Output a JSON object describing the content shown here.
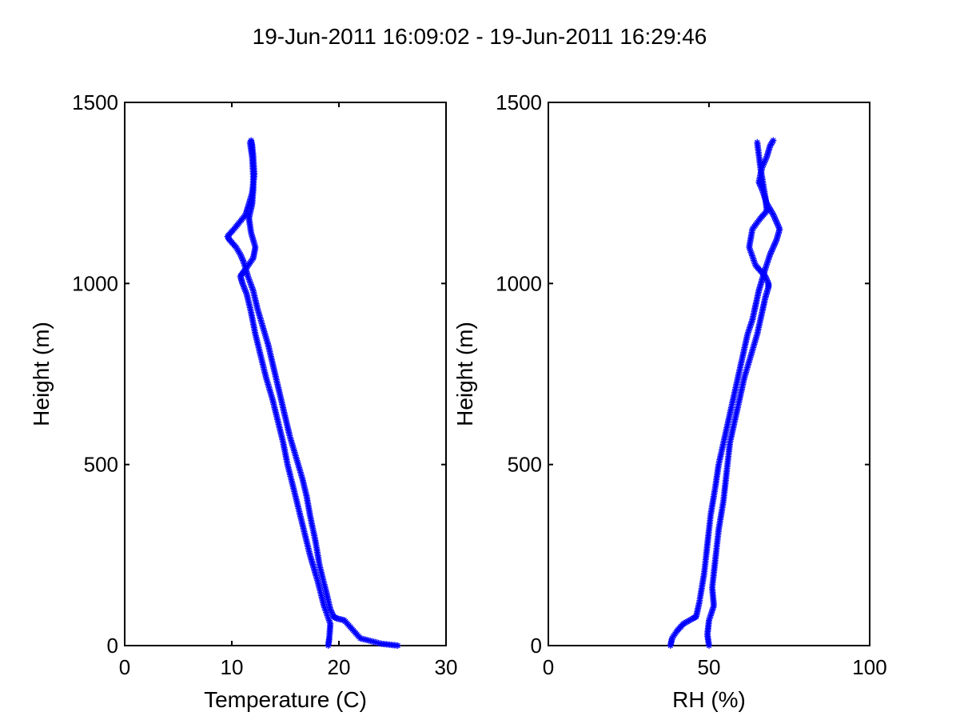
{
  "figure": {
    "title": "19-Jun-2011 16:09:02 - 19-Jun-2011 16:29:46"
  },
  "chart_data": [
    {
      "type": "line",
      "marker": "asterisk",
      "color": "#0000ff",
      "xlabel": "Temperature (C)",
      "ylabel": "Height (m)",
      "xlim": [
        0,
        30
      ],
      "ylim": [
        0,
        1500
      ],
      "xticks": [
        0,
        10,
        20,
        30
      ],
      "yticks": [
        0,
        500,
        1000,
        1500
      ],
      "grid": false,
      "series": [
        {
          "x": [
            25.5,
            24,
            22,
            20.5,
            19.8,
            19.5,
            19.2,
            18.8,
            18.2,
            17.8,
            17.3,
            17.0,
            16.6,
            16.0,
            15.4,
            15.0,
            14.6,
            14.2,
            13.8,
            13.4,
            12.9,
            12.4,
            12.0,
            11.5,
            11.1,
            10.8,
            10.4,
            9.8,
            9.6,
            10.2,
            11.3,
            11.5,
            11.9,
            12.1,
            12.0,
            11.9,
            11.8
          ],
          "y": [
            0,
            5,
            20,
            70,
            75,
            80,
            100,
            150,
            220,
            290,
            360,
            410,
            460,
            520,
            580,
            630,
            680,
            730,
            780,
            830,
            880,
            930,
            980,
            1020,
            1060,
            1080,
            1100,
            1120,
            1130,
            1150,
            1190,
            1210,
            1250,
            1300,
            1350,
            1380,
            1395
          ]
        },
        {
          "x": [
            19.0,
            19.1,
            19.2,
            18.6,
            18.0,
            17.3,
            16.8,
            16.3,
            15.8,
            15.2,
            14.8,
            14.3,
            13.8,
            13.2,
            12.7,
            12.2,
            11.8,
            11.4,
            11.0,
            10.8,
            11.3,
            12.0,
            12.2,
            11.8,
            11.6,
            11.9,
            12.0,
            12.0,
            11.9,
            11.7
          ],
          "y": [
            0,
            20,
            60,
            110,
            180,
            250,
            310,
            370,
            430,
            500,
            560,
            620,
            680,
            740,
            800,
            860,
            920,
            970,
            1000,
            1020,
            1040,
            1070,
            1100,
            1140,
            1180,
            1220,
            1260,
            1300,
            1350,
            1390
          ]
        }
      ]
    },
    {
      "type": "line",
      "marker": "asterisk",
      "color": "#0000ff",
      "xlabel": "RH (%)",
      "ylabel": "Height (m)",
      "xlim": [
        0,
        100
      ],
      "ylim": [
        0,
        1500
      ],
      "xticks": [
        0,
        50,
        100
      ],
      "yticks": [
        0,
        500,
        1000,
        1500
      ],
      "grid": false,
      "series": [
        {
          "x": [
            38,
            38.5,
            40,
            42,
            45,
            46,
            47,
            48.5,
            49.5,
            50.5,
            52,
            53,
            54.5,
            56,
            57.5,
            59,
            60.5,
            62,
            63.5,
            64.5,
            65.5,
            66.5,
            67.5,
            69,
            71,
            72,
            70,
            68,
            66.5,
            65.5,
            66.5,
            68,
            69,
            70
          ],
          "y": [
            0,
            20,
            40,
            60,
            75,
            80,
            120,
            200,
            280,
            360,
            440,
            500,
            560,
            620,
            680,
            740,
            800,
            860,
            900,
            940,
            980,
            1010,
            1040,
            1080,
            1120,
            1150,
            1190,
            1220,
            1260,
            1280,
            1320,
            1350,
            1380,
            1395
          ]
        },
        {
          "x": [
            50,
            49.5,
            50,
            51.5,
            51,
            52,
            53,
            54.5,
            55.5,
            56.5,
            58,
            59.5,
            61,
            63,
            65,
            66.5,
            67.5,
            68.5,
            68.5,
            67.5,
            64.5,
            62.5,
            63.5,
            66,
            68,
            67.5,
            66,
            65
          ],
          "y": [
            0,
            30,
            70,
            110,
            160,
            240,
            320,
            400,
            480,
            560,
            620,
            680,
            740,
            800,
            860,
            920,
            960,
            990,
            1000,
            1020,
            1050,
            1100,
            1150,
            1180,
            1200,
            1240,
            1320,
            1390
          ]
        }
      ]
    }
  ]
}
